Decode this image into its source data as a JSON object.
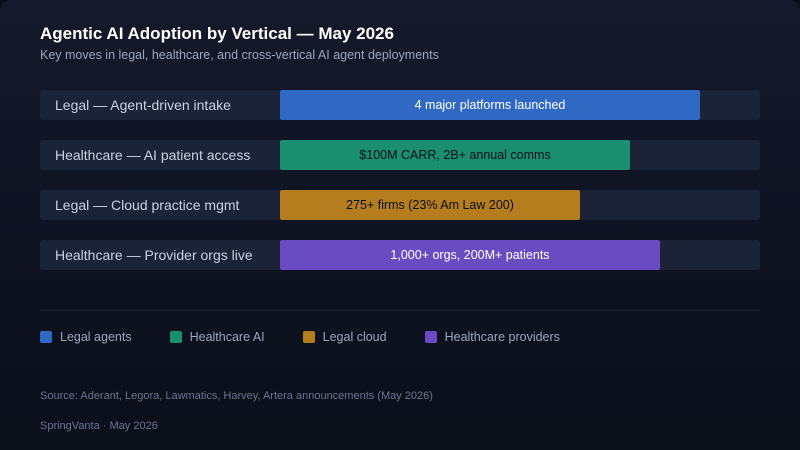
{
  "chart_data": {
    "type": "bar",
    "orientation": "horizontal",
    "title": "Agentic AI Adoption by Vertical — May 2026",
    "subtitle": "Key moves in legal, healthcare, and cross-vertical AI agent deployments",
    "scale_max": 100,
    "categories": [
      "Legal — Agent-driven intake",
      "Healthcare — AI patient access",
      "Legal — Cloud practice mgmt",
      "Healthcare — Provider orgs live"
    ],
    "values": [
      87.5,
      72.9,
      62.5,
      79.2
    ],
    "data_labels": [
      "4 major platforms launched",
      "$100M CARR, 2B+ annual comms",
      "275+ firms (23% Am Law 200)",
      "1,000+ orgs, 200M+ patients"
    ],
    "bar_colors": [
      "#3069c4",
      "#1a8f6f",
      "#b57d1e",
      "#6a4cc2"
    ],
    "label_colors": [
      "#ffffff",
      "#0b0f1a",
      "#0b0f1a",
      "#ffffff"
    ],
    "legend": {
      "placement": "bottom-left",
      "items": [
        {
          "label": "Legal agents",
          "color": "#3069c4"
        },
        {
          "label": "Healthcare AI",
          "color": "#1a8f6f"
        },
        {
          "label": "Legal cloud",
          "color": "#b57d1e"
        },
        {
          "label": "Healthcare providers",
          "color": "#6a4cc2"
        }
      ]
    },
    "grid": false
  },
  "footer": {
    "source": "Source: Aderant, Legora, Lawmatics, Harvey, Artera announcements (May 2026)",
    "brand": "SpringVanta · May 2026"
  }
}
